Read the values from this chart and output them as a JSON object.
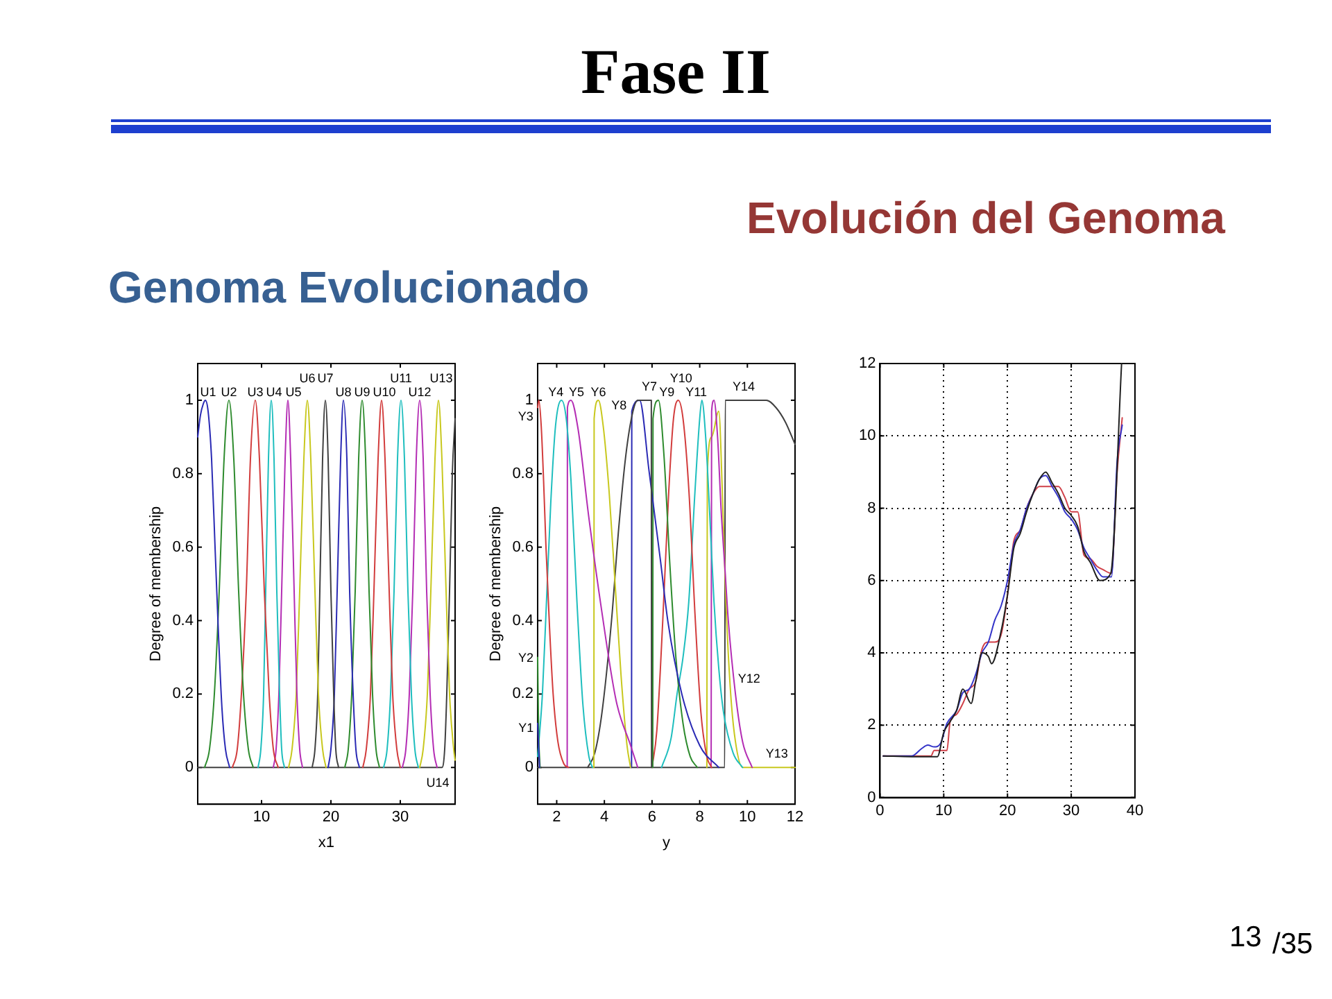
{
  "chart_data": [
    {
      "type": "line",
      "title": "Genoma Evolucionado",
      "xlabel": "x1",
      "ylabel": "Degree of membership",
      "xlim": [
        0.8,
        37.9
      ],
      "ylim": [
        -0.1,
        1.1
      ],
      "xticks": [
        10,
        20,
        30
      ],
      "yticks": [
        0,
        0.2,
        0.4,
        0.6,
        0.8,
        1
      ],
      "series": [
        {
          "name": "U1",
          "color": "#2a2ab4",
          "x": [
            0.8,
            1.2,
            1.6,
            1.9,
            2.3,
            2.8,
            3.3,
            3.8,
            4.3,
            4.8,
            5.4
          ],
          "values": [
            0.9,
            0.96,
            0.99,
            1,
            0.97,
            0.84,
            0.6,
            0.36,
            0.16,
            0.05,
            0
          ]
        },
        {
          "name": "U2",
          "color": "#2e8b2e",
          "x": [
            1.8,
            2.5,
            3.2,
            3.9,
            4.6,
            5.3,
            6.0,
            6.7,
            7.4,
            8.1,
            8.8
          ],
          "values": [
            0,
            0.05,
            0.2,
            0.48,
            0.84,
            1,
            0.84,
            0.48,
            0.2,
            0.05,
            0
          ]
        },
        {
          "name": "U3",
          "color": "#d23c3c",
          "x": [
            5.8,
            6.5,
            7.1,
            7.8,
            8.4,
            9.1,
            9.7,
            10.4,
            11.1,
            11.7,
            12.4
          ],
          "values": [
            0,
            0.05,
            0.2,
            0.48,
            0.84,
            1,
            0.84,
            0.48,
            0.2,
            0.05,
            0
          ]
        },
        {
          "name": "U4",
          "color": "#1ebebe",
          "x": [
            9.5,
            9.9,
            10.3,
            10.6,
            11.0,
            11.4,
            11.8,
            12.2,
            12.6,
            12.9,
            13.3
          ],
          "values": [
            0,
            0.05,
            0.2,
            0.48,
            0.84,
            1,
            0.84,
            0.48,
            0.2,
            0.05,
            0
          ]
        },
        {
          "name": "U5",
          "color": "#b42db4",
          "x": [
            11.7,
            12.1,
            12.5,
            12.9,
            13.4,
            13.8,
            14.2,
            14.7,
            15.1,
            15.5,
            15.9
          ],
          "values": [
            0,
            0.05,
            0.2,
            0.48,
            0.84,
            1,
            0.84,
            0.48,
            0.2,
            0.05,
            0
          ]
        },
        {
          "name": "U6",
          "color": "#c8c81e",
          "x": [
            13.9,
            14.4,
            15.0,
            15.5,
            16.1,
            16.6,
            17.1,
            17.7,
            18.2,
            18.8,
            19.3
          ],
          "values": [
            0,
            0.05,
            0.2,
            0.48,
            0.84,
            1,
            0.84,
            0.48,
            0.2,
            0.05,
            0
          ]
        },
        {
          "name": "U7",
          "color": "#404040",
          "x": [
            17.3,
            17.7,
            18.1,
            18.4,
            18.8,
            19.2,
            19.6,
            20.0,
            20.4,
            20.7,
            21.1
          ],
          "values": [
            0,
            0.05,
            0.2,
            0.48,
            0.84,
            1,
            0.84,
            0.48,
            0.2,
            0.05,
            0
          ]
        },
        {
          "name": "U8",
          "color": "#2a2ab4",
          "x": [
            19.6,
            20.0,
            20.5,
            20.9,
            21.4,
            21.8,
            22.3,
            22.7,
            23.2,
            23.6,
            24.1
          ],
          "values": [
            0,
            0.05,
            0.2,
            0.48,
            0.84,
            1,
            0.84,
            0.48,
            0.2,
            0.05,
            0
          ]
        },
        {
          "name": "U9",
          "color": "#2e8b2e",
          "x": [
            22.0,
            22.5,
            23.0,
            23.5,
            24.0,
            24.5,
            25.0,
            25.5,
            26.0,
            26.5,
            27.0
          ],
          "values": [
            0,
            0.05,
            0.2,
            0.48,
            0.84,
            1,
            0.84,
            0.48,
            0.2,
            0.05,
            0
          ]
        },
        {
          "name": "U10",
          "color": "#d23c3c",
          "x": [
            24.6,
            25.1,
            25.7,
            26.2,
            26.8,
            27.3,
            27.8,
            28.4,
            28.9,
            29.5,
            30.0
          ],
          "values": [
            0,
            0.05,
            0.2,
            0.48,
            0.84,
            1,
            0.84,
            0.48,
            0.2,
            0.05,
            0
          ]
        },
        {
          "name": "U11",
          "color": "#1ebebe",
          "x": [
            27.6,
            28.1,
            28.6,
            29.1,
            29.6,
            30.1,
            30.6,
            31.1,
            31.6,
            32.1,
            32.6
          ],
          "values": [
            0,
            0.05,
            0.2,
            0.48,
            0.84,
            1,
            0.84,
            0.48,
            0.2,
            0.05,
            0
          ]
        },
        {
          "name": "U12",
          "color": "#b42db4",
          "x": [
            30.3,
            30.8,
            31.3,
            31.8,
            32.3,
            32.8,
            33.3,
            33.8,
            34.3,
            34.8,
            35.3
          ],
          "values": [
            0,
            0.05,
            0.2,
            0.48,
            0.84,
            1,
            0.84,
            0.48,
            0.2,
            0.05,
            0
          ]
        },
        {
          "name": "U13",
          "color": "#c8c81e",
          "x": [
            32.8,
            33.3,
            33.9,
            34.4,
            35.0,
            35.5,
            36.0,
            36.6,
            37.1,
            37.7,
            37.9
          ],
          "values": [
            0,
            0.05,
            0.2,
            0.48,
            0.84,
            1,
            0.84,
            0.48,
            0.2,
            0.05,
            0.02
          ]
        },
        {
          "name": "U14",
          "color": "#404040",
          "x": [
            0.8,
            36.0,
            36.4,
            36.7,
            37.1,
            37.5,
            37.9
          ],
          "values": [
            0,
            0,
            0.05,
            0.2,
            0.48,
            0.8,
            0.95
          ]
        }
      ]
    },
    {
      "type": "line",
      "title": "Fase II",
      "xlabel": "y",
      "ylabel": "Degree of membership",
      "xlim": [
        1.2,
        12
      ],
      "ylim": [
        -0.1,
        1.1
      ],
      "xticks": [
        2,
        4,
        6,
        8,
        10,
        12
      ],
      "yticks": [
        0,
        0.2,
        0.4,
        0.6,
        0.8,
        1
      ],
      "series": [
        {
          "name": "Y1",
          "color": "#2a2ab4",
          "x": [
            1.2,
            1.28
          ],
          "values": [
            0.12,
            0
          ]
        },
        {
          "name": "Y2",
          "color": "#2e8b2e",
          "x": [
            1.2,
            1.24,
            1.3
          ],
          "values": [
            0.3,
            0.1,
            0
          ]
        },
        {
          "name": "Y3",
          "color": "#d23c3c",
          "x": [
            1.2,
            1.25,
            1.35,
            1.45,
            1.55,
            1.7,
            1.85,
            2.05,
            2.3,
            2.5
          ],
          "values": [
            0.98,
            1,
            0.93,
            0.78,
            0.6,
            0.38,
            0.2,
            0.07,
            0.01,
            0
          ]
        },
        {
          "name": "Y4",
          "color": "#1ebebe",
          "x": [
            1.2,
            1.4,
            1.55,
            1.75,
            1.95,
            2.2,
            2.4,
            2.6,
            2.85,
            3.1,
            3.35,
            3.5
          ],
          "values": [
            0.03,
            0.2,
            0.42,
            0.72,
            0.93,
            1,
            0.95,
            0.78,
            0.45,
            0.17,
            0.03,
            0
          ]
        },
        {
          "name": "Y5",
          "color": "#b42db4",
          "x": [
            2.44,
            2.45,
            2.6,
            2.9,
            3.33,
            3.88,
            4.5,
            5.1,
            5.4
          ],
          "values": [
            0,
            0.98,
            1,
            0.92,
            0.69,
            0.43,
            0.18,
            0.06,
            0
          ]
        },
        {
          "name": "Y6",
          "color": "#c8c81e",
          "x": [
            3.56,
            3.57,
            3.75,
            3.95,
            4.2,
            4.45,
            4.7,
            4.95,
            5.1
          ],
          "values": [
            0,
            0.95,
            1,
            0.93,
            0.75,
            0.5,
            0.25,
            0.06,
            0
          ]
        },
        {
          "name": "Y7",
          "color": "#404040",
          "x": [
            3.3,
            3.6,
            3.9,
            4.3,
            4.6,
            4.9,
            5.2,
            5.4,
            5.97,
            5.98
          ],
          "values": [
            0,
            0.04,
            0.15,
            0.4,
            0.65,
            0.85,
            0.97,
            1,
            1,
            0
          ]
        },
        {
          "name": "Y8",
          "color": "#2a2ab4",
          "x": [
            5.14,
            5.15,
            5.48,
            5.87,
            6.36,
            6.66,
            7.25,
            8.0,
            8.8
          ],
          "values": [
            0,
            0.97,
            1,
            0.81,
            0.56,
            0.4,
            0.2,
            0.06,
            0
          ]
        },
        {
          "name": "Y9",
          "color": "#2e8b2e",
          "x": [
            6.03,
            6.04,
            6.27,
            6.5,
            6.75,
            7.0,
            7.3,
            7.6,
            7.9
          ],
          "values": [
            0,
            0.95,
            1,
            0.85,
            0.55,
            0.3,
            0.12,
            0.03,
            0
          ]
        },
        {
          "name": "Y10",
          "color": "#d23c3c",
          "x": [
            6.0,
            6.2,
            6.45,
            6.7,
            6.9,
            7.1,
            7.3,
            7.55,
            7.8,
            8.05,
            8.3,
            8.5
          ],
          "values": [
            0,
            0.1,
            0.4,
            0.75,
            0.95,
            1,
            0.95,
            0.75,
            0.42,
            0.15,
            0.03,
            0
          ]
        },
        {
          "name": "Y11",
          "color": "#1ebebe",
          "x": [
            6.4,
            6.8,
            7.05,
            7.3,
            7.54,
            7.8,
            8.0,
            8.09,
            8.25,
            8.42,
            8.6,
            8.8,
            9.0,
            9.4,
            9.8
          ],
          "values": [
            0,
            0.08,
            0.2,
            0.3,
            0.45,
            0.75,
            0.95,
            1,
            0.9,
            0.69,
            0.45,
            0.27,
            0.15,
            0.04,
            0
          ]
        },
        {
          "name": "Y12",
          "color": "#b42db4",
          "x": [
            8.48,
            8.5,
            8.6,
            8.75,
            8.9,
            9.05,
            9.2,
            9.5,
            9.8,
            10.2
          ],
          "values": [
            0,
            0.97,
            1,
            0.9,
            0.7,
            0.55,
            0.4,
            0.2,
            0.07,
            0
          ]
        },
        {
          "name": "Y13",
          "color": "#c8c81e",
          "x": [
            8.3,
            8.32,
            8.5,
            8.8,
            8.95,
            9.1,
            9.3,
            9.5,
            9.8,
            12
          ],
          "values": [
            0,
            0.8,
            0.9,
            0.97,
            0.75,
            0.45,
            0.2,
            0.07,
            0,
            0
          ]
        },
        {
          "name": "Y14",
          "color": "#404040",
          "x": [
            1.2,
            9.05,
            9.07,
            10.8,
            11.2,
            11.6,
            12
          ],
          "values": [
            0,
            0,
            1,
            1,
            0.98,
            0.94,
            0.88
          ]
        }
      ]
    },
    {
      "type": "line",
      "title": "Evolución del Genoma",
      "annotations": [
        "13",
        "/35"
      ],
      "xlim": [
        0,
        40
      ],
      "ylim": [
        0,
        12
      ],
      "xticks": [
        0,
        10,
        20,
        30,
        40
      ],
      "yticks": [
        0,
        2,
        4,
        6,
        8,
        10,
        12
      ],
      "grid": true,
      "series": [
        {
          "color": "#202020",
          "x": [
            0.5,
            5,
            9,
            10,
            11,
            12,
            13,
            14.3,
            15,
            16,
            17,
            17.5,
            19,
            20,
            21,
            22,
            23,
            24,
            25,
            26,
            27,
            28,
            29,
            30,
            31,
            32,
            33,
            34.5,
            36.2,
            37.9
          ],
          "values": [
            1.15,
            1.13,
            1.13,
            1.8,
            2.1,
            2.4,
            3.0,
            2.6,
            3.2,
            4.0,
            3.9,
            3.7,
            4.6,
            5.6,
            6.9,
            7.3,
            7.9,
            8.4,
            8.8,
            9.0,
            8.7,
            8.4,
            8.0,
            7.8,
            7.5,
            6.8,
            6.5,
            6.0,
            6.2,
            12
          ]
        },
        {
          "color": "#3434c8",
          "x": [
            0.5,
            5,
            6.5,
            7.5,
            8.5,
            9.5,
            10.5,
            12,
            13,
            14,
            15,
            16,
            17,
            18,
            19,
            20,
            21,
            22,
            23,
            24,
            25,
            26,
            27,
            28,
            29,
            30,
            31,
            32,
            33,
            34,
            35,
            36.3,
            37.2,
            38
          ],
          "values": [
            1.15,
            1.15,
            1.35,
            1.45,
            1.4,
            1.5,
            2.05,
            2.4,
            2.9,
            3.0,
            3.4,
            4.0,
            4.3,
            4.9,
            5.3,
            6.0,
            7.0,
            7.4,
            8.0,
            8.4,
            8.8,
            8.9,
            8.6,
            8.3,
            7.9,
            7.7,
            7.4,
            6.9,
            6.6,
            6.3,
            6.1,
            6.1,
            9.3,
            10.3
          ]
        },
        {
          "color": "#d04048",
          "x": [
            0.5,
            8,
            8.5,
            10.5,
            11,
            12,
            13,
            14,
            15,
            16,
            17,
            18,
            19,
            20,
            21,
            22,
            23,
            24,
            25,
            26,
            27,
            28,
            29,
            30,
            31,
            32,
            33,
            34,
            35,
            36.3,
            37.2,
            38
          ],
          "values": [
            1.15,
            1.15,
            1.3,
            1.3,
            2.1,
            2.3,
            2.6,
            3.0,
            3.2,
            4.1,
            4.3,
            4.3,
            4.5,
            5.6,
            7.1,
            7.4,
            8.0,
            8.4,
            8.6,
            8.6,
            8.6,
            8.6,
            8.3,
            7.9,
            7.9,
            6.7,
            6.6,
            6.4,
            6.3,
            6.2,
            9.0,
            10.5
          ]
        }
      ]
    }
  ]
}
